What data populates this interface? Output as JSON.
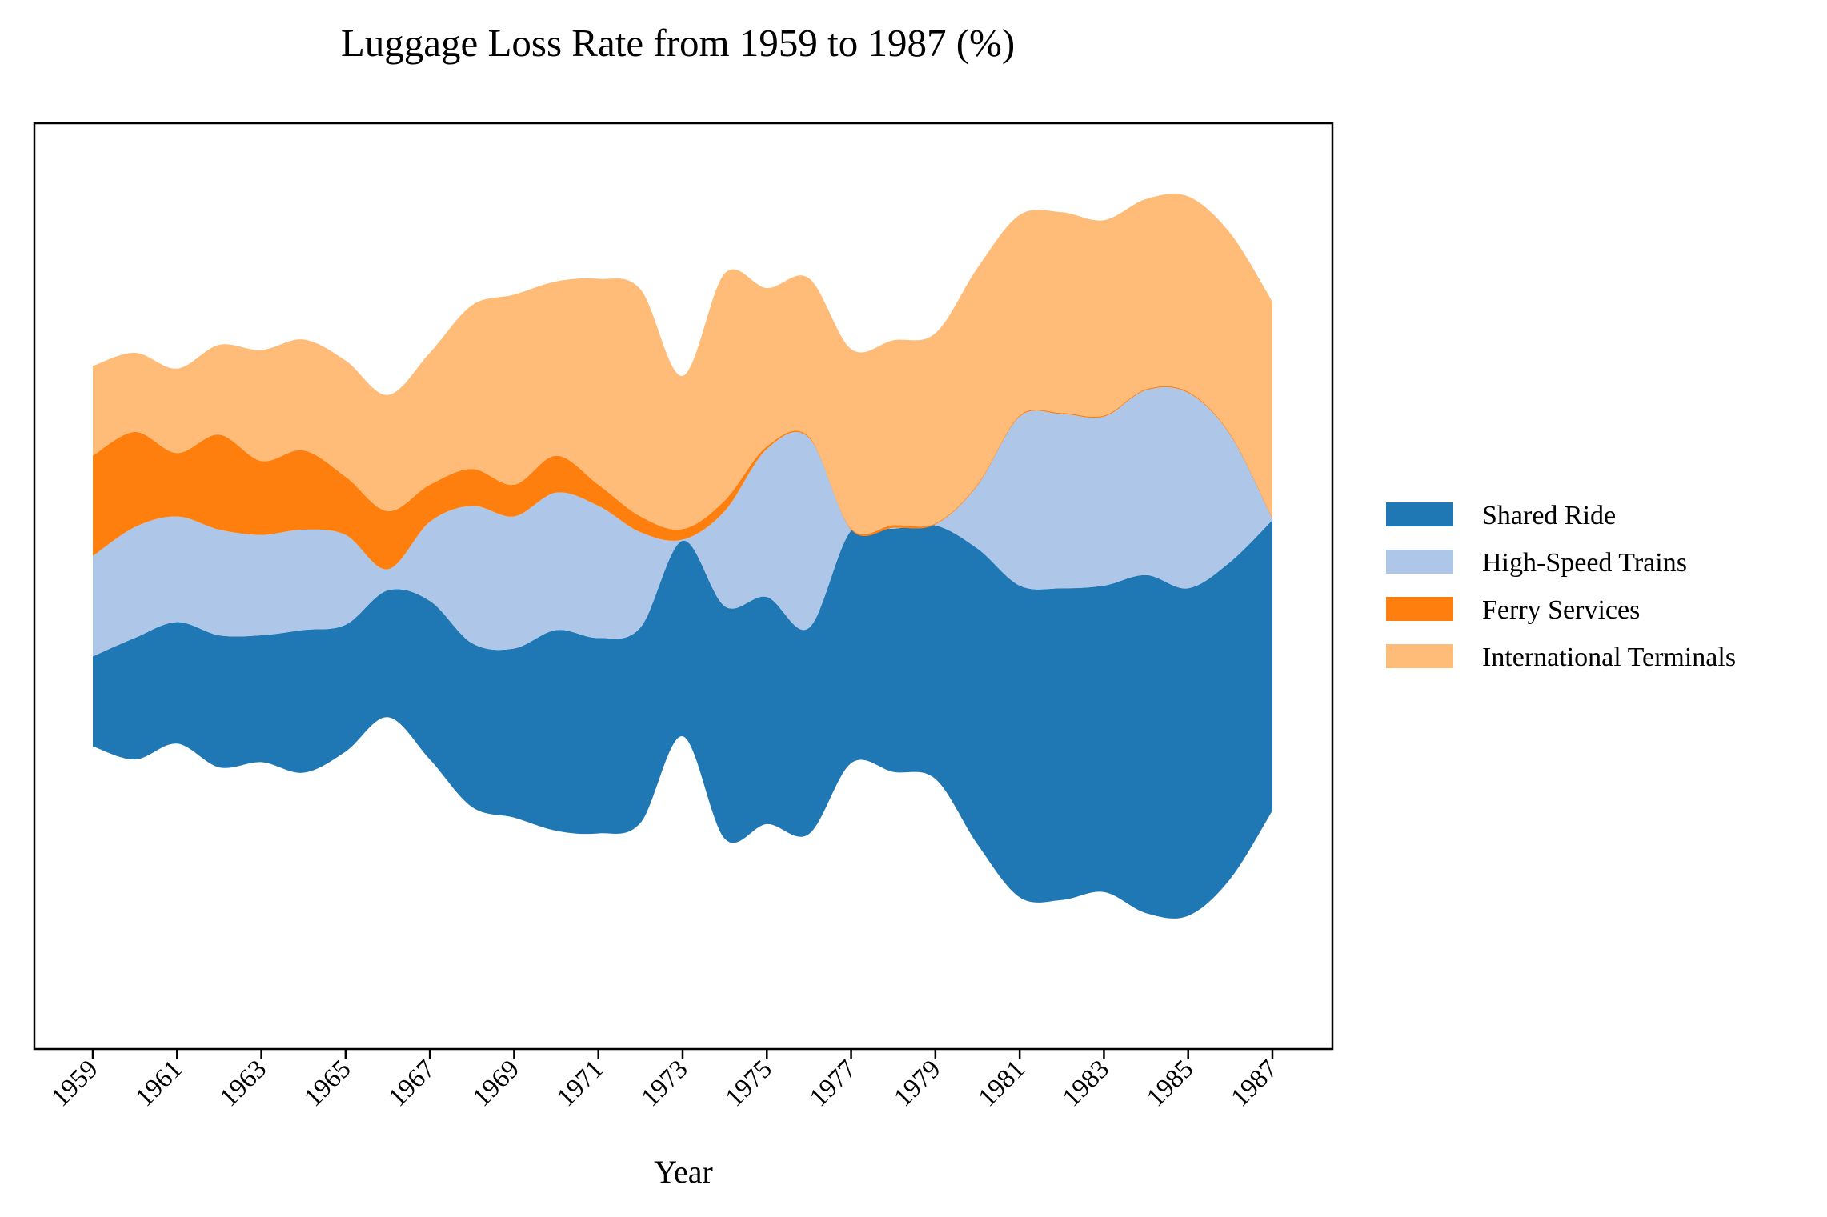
{
  "chart_data": {
    "type": "area",
    "subtype": "streamgraph",
    "title": "Luggage Loss Rate from 1959 to 1987 (%)",
    "xlabel": "Year",
    "ylabel": "",
    "x": [
      1959,
      1960,
      1961,
      1962,
      1963,
      1964,
      1965,
      1966,
      1967,
      1968,
      1969,
      1970,
      1971,
      1972,
      1973,
      1974,
      1975,
      1976,
      1977,
      1978,
      1979,
      1980,
      1981,
      1982,
      1983,
      1984,
      1985,
      1986,
      1987
    ],
    "xticks": [
      "1959",
      "1961",
      "1963",
      "1965",
      "1967",
      "1969",
      "1971",
      "1973",
      "1975",
      "1977",
      "1979",
      "1981",
      "1983",
      "1985",
      "1987"
    ],
    "y_ticks_shown": false,
    "grid": false,
    "legend_position": "right",
    "series": [
      {
        "name": "Shared Ride",
        "color": "#1f77b4",
        "values": [
          1.7,
          2.3,
          2.3,
          2.5,
          2.4,
          2.7,
          2.4,
          2.4,
          3.0,
          3.1,
          3.2,
          3.8,
          3.7,
          3.7,
          3.7,
          4.4,
          4.3,
          3.9,
          4.4,
          4.6,
          4.8,
          5.6,
          5.9,
          5.9,
          5.8,
          6.4,
          6.2,
          6.0,
          5.5
        ]
      },
      {
        "name": "High-Speed Trains",
        "color": "#aec7e8",
        "values": [
          1.9,
          2.1,
          2.0,
          2.0,
          1.9,
          1.9,
          1.7,
          0.4,
          1.5,
          2.6,
          2.5,
          2.6,
          2.5,
          1.8,
          0.02,
          1.8,
          2.8,
          3.6,
          0.02,
          0.02,
          0.02,
          1.2,
          3.2,
          3.3,
          3.2,
          3.5,
          3.7,
          2.4,
          0.02
        ]
      },
      {
        "name": "Ferry Services",
        "color": "#ff7f0e",
        "values": [
          1.9,
          1.8,
          1.2,
          1.8,
          1.4,
          1.5,
          1.1,
          1.1,
          0.7,
          0.7,
          0.6,
          0.7,
          0.4,
          0.3,
          0.2,
          0.2,
          0.05,
          0.02,
          0.02,
          0.05,
          0.02,
          0.02,
          0.02,
          0.02,
          0.02,
          0.02,
          0.02,
          0.02,
          0.02
        ]
      },
      {
        "name": "International Terminals",
        "color": "#ffbb78",
        "values": [
          1.7,
          1.5,
          1.6,
          1.7,
          2.1,
          2.1,
          2.2,
          2.2,
          2.5,
          3.1,
          3.6,
          3.3,
          3.9,
          4.3,
          2.9,
          4.3,
          3.0,
          3.0,
          3.4,
          3.5,
          3.6,
          4.1,
          3.8,
          3.8,
          3.7,
          3.6,
          3.7,
          3.8,
          4.1
        ]
      }
    ]
  }
}
